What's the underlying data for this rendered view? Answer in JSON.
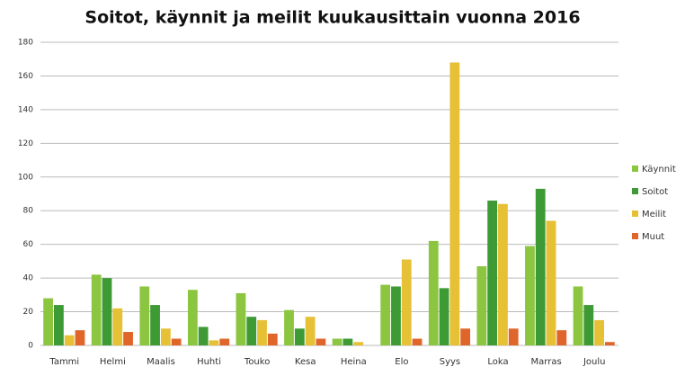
{
  "chart_data": {
    "type": "bar",
    "title": "Soitot, käynnit ja meilit kuukausittain vuonna 2016",
    "categories": [
      "Tammi",
      "Helmi",
      "Maalis",
      "Huhti",
      "Touko",
      "Kesa",
      "Heina",
      "Elo",
      "Syys",
      "Loka",
      "Marras",
      "Joulu"
    ],
    "series": [
      {
        "name": "Käynnit",
        "color": "#8cc540",
        "values": [
          28,
          42,
          35,
          33,
          31,
          21,
          4,
          36,
          62,
          47,
          59,
          35
        ]
      },
      {
        "name": "Soitot",
        "color": "#3d9a35",
        "values": [
          24,
          40,
          24,
          11,
          17,
          10,
          4,
          35,
          34,
          86,
          93,
          24
        ]
      },
      {
        "name": "Meilit",
        "color": "#e6c035",
        "values": [
          6,
          22,
          10,
          3,
          15,
          17,
          2,
          51,
          168,
          84,
          74,
          15
        ]
      },
      {
        "name": "Muut",
        "color": "#e0652a",
        "values": [
          9,
          8,
          4,
          4,
          7,
          4,
          0,
          4,
          10,
          10,
          9,
          2
        ]
      }
    ],
    "ylim": [
      0,
      180
    ],
    "yticks": [
      0,
      20,
      40,
      60,
      80,
      100,
      120,
      140,
      160,
      180
    ],
    "grid": true,
    "legend": "right"
  }
}
